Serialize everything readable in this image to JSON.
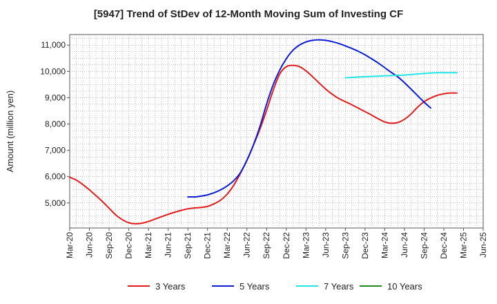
{
  "chart_data": {
    "type": "line",
    "title": "[5947]  Trend of StDev of 12-Month Moving Sum of Investing CF",
    "xlabel": "",
    "ylabel": "Amount (million yen)",
    "x_ticks": [
      "Mar-20",
      "Jun-20",
      "Sep-20",
      "Dec-20",
      "Mar-21",
      "Jun-21",
      "Sep-21",
      "Dec-21",
      "Mar-22",
      "Jun-22",
      "Sep-22",
      "Dec-22",
      "Mar-23",
      "Jun-23",
      "Sep-23",
      "Dec-23",
      "Mar-24",
      "Jun-24",
      "Sep-24",
      "Dec-24",
      "Mar-25",
      "Jun-25"
    ],
    "y_ticks": [
      5000,
      6000,
      7000,
      8000,
      9000,
      10000,
      11000
    ],
    "ylim": [
      4050,
      11400
    ],
    "grid": true,
    "legend_position": "bottom",
    "series": [
      {
        "name": "3 Years",
        "color": "#e31a1c",
        "start_index": 0,
        "values": [
          5980,
          5870,
          5700,
          5500,
          5280,
          5050,
          4800,
          4550,
          4370,
          4250,
          4210,
          4230,
          4300,
          4390,
          4480,
          4570,
          4650,
          4720,
          4780,
          4810,
          4830,
          4870,
          4970,
          5110,
          5340,
          5680,
          6120,
          6630,
          7200,
          7820,
          8520,
          9280,
          9900,
          10180,
          10230,
          10180,
          10020,
          9800,
          9560,
          9330,
          9130,
          8970,
          8850,
          8730,
          8600,
          8470,
          8340,
          8200,
          8080,
          8030,
          8060,
          8180,
          8380,
          8640,
          8850,
          8990,
          9090,
          9150,
          9180,
          9180
        ]
      },
      {
        "name": "5 Years",
        "color": "#0a1bd4",
        "start_index": 18,
        "values": [
          5230,
          5230,
          5260,
          5310,
          5390,
          5500,
          5650,
          5850,
          6150,
          6620,
          7210,
          7920,
          8760,
          9490,
          10050,
          10480,
          10800,
          11000,
          11120,
          11180,
          11200,
          11180,
          11130,
          11060,
          10970,
          10870,
          10760,
          10630,
          10480,
          10320,
          10140,
          9960,
          9790,
          9570,
          9330,
          9080,
          8830,
          8610
        ]
      },
      {
        "name": "7 Years",
        "color": "#22e5e5",
        "start_index": 42,
        "values": [
          9760,
          9770,
          9790,
          9800,
          9810,
          9820,
          9830,
          9840,
          9850,
          9860,
          9880,
          9900,
          9920,
          9940,
          9950,
          9950,
          9950,
          9950
        ]
      },
      {
        "name": "10 Years",
        "color": "#1f8a1f",
        "start_index": 0,
        "values": []
      }
    ]
  }
}
